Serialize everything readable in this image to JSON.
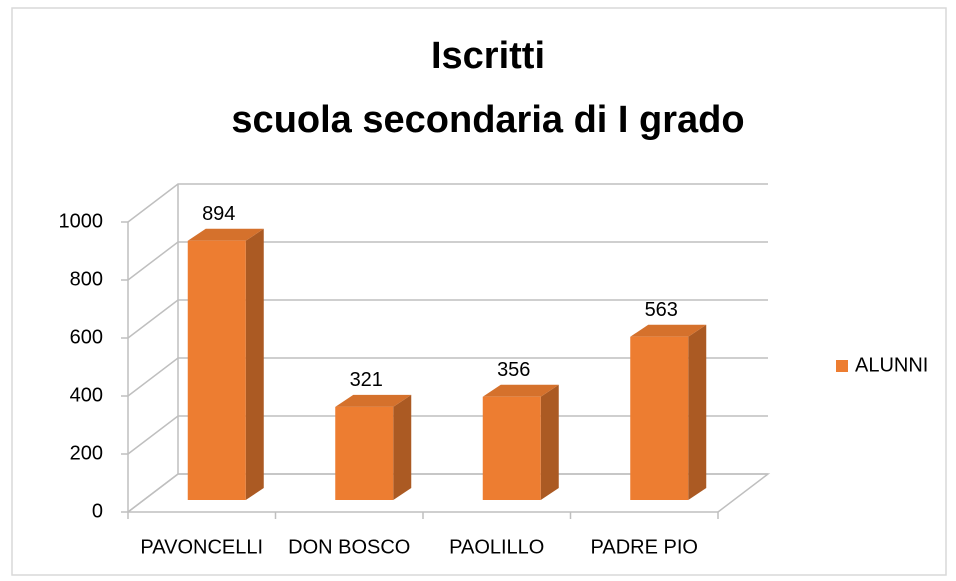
{
  "chart_data": {
    "type": "bar3d",
    "title": [
      "Iscritti",
      "scuola secondaria di I grado"
    ],
    "categories": [
      "PAVONCELLI",
      "DON BOSCO",
      "PAOLILLO",
      "PADRE PIO"
    ],
    "series": [
      {
        "name": "ALUNNI",
        "color": "#ED7D31",
        "values": [
          894,
          321,
          356,
          563
        ]
      }
    ],
    "ylim": [
      0,
      1000
    ],
    "yticks": [
      0,
      200,
      400,
      600,
      800,
      1000
    ],
    "grid": true,
    "legend": "right"
  }
}
